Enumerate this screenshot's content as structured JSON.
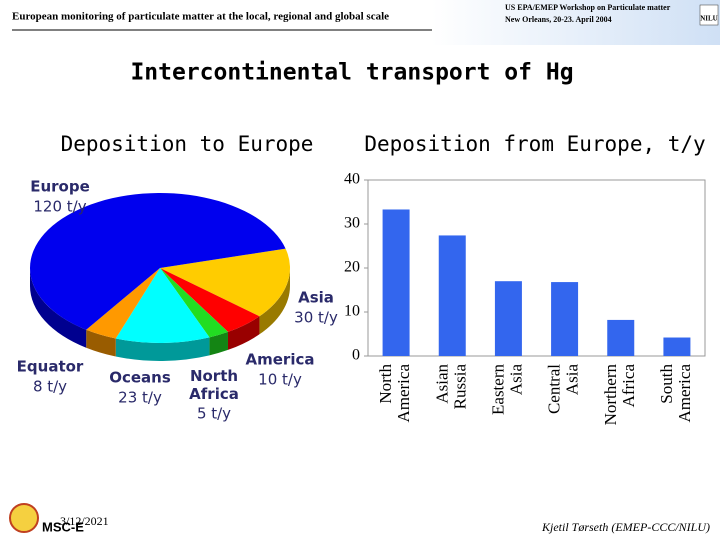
{
  "header": {
    "left": "European monitoring of particulate matter at the local, regional and global scale",
    "right_1": "US EPA/EMEP Workshop on Particulate matter",
    "right_2": "New Orleans, 20-23. April 2004",
    "logo": "NILU"
  },
  "slide_title": "Intercontinental transport of Hg",
  "footer": {
    "date": "3/12/2021",
    "logo": "MSC-E",
    "author": "Kjetil Tørseth (EMEP-CCC/NILU)"
  },
  "chart_data": [
    {
      "type": "pie",
      "title": "Deposition to Europe",
      "categories": [
        "Europe",
        "Asia",
        "America",
        "North Africa",
        "Oceans",
        "Equator"
      ],
      "values": [
        120,
        30,
        10,
        5,
        23,
        8
      ],
      "value_labels": [
        "120 t/y",
        "30 t/y",
        "10 t/y",
        "5 t/y",
        "23 t/y",
        "8 t/y"
      ],
      "colors": [
        "#0000ee",
        "#ffcc00",
        "#ff0000",
        "#22dd22",
        "#00ffff",
        "#ff9900"
      ]
    },
    {
      "type": "bar",
      "title": "Deposition from Europe, t/y",
      "categories": [
        "North America",
        "Asian Russia",
        "Eastern Asia",
        "Central Asia",
        "Northern Africa",
        "South America"
      ],
      "values": [
        33.3,
        27.4,
        17.0,
        16.8,
        8.2,
        4.2
      ],
      "color": "#3366ee",
      "ylim": [
        0,
        40
      ],
      "yticks": [
        0,
        10,
        20,
        30,
        40
      ],
      "grid": false
    }
  ]
}
